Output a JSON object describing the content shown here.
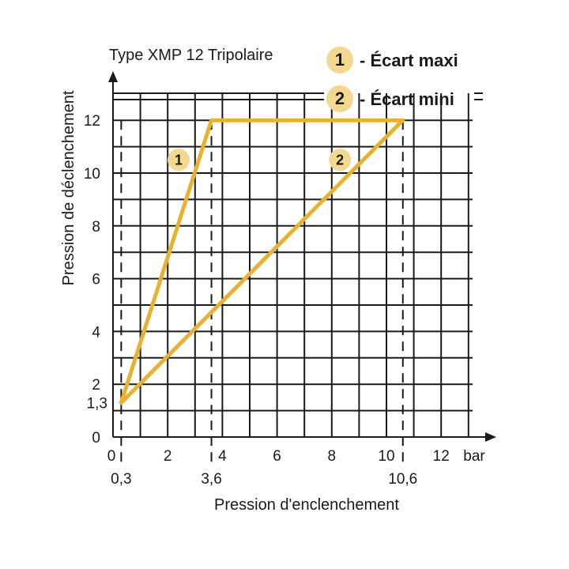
{
  "chart_data": {
    "type": "line",
    "title": "Type XMP 12 Tripolaire",
    "xlabel": "Pression d'enclenchement",
    "ylabel": "Pression de déclenchement",
    "x_unit": "bar",
    "xlim": [
      0,
      13.5
    ],
    "ylim": [
      0,
      13.3
    ],
    "x_ticks": [
      "0",
      "2",
      "4",
      "6",
      "8",
      "10",
      "12"
    ],
    "y_ticks": [
      "0",
      "2",
      "4",
      "6",
      "8",
      "10",
      "12"
    ],
    "x_ticks_extra": [
      "0,3",
      "3,6",
      "10,6"
    ],
    "y_ticks_extra": [
      "1,3"
    ],
    "grid": true,
    "line_color": "#e8b12e",
    "badge_color": "#f3d98f",
    "series": [
      {
        "name": "1 - Écart maxi",
        "badge": "1",
        "x": [
          0.3,
          3.6
        ],
        "y": [
          1.3,
          12
        ]
      },
      {
        "name": "2 - Écart mini",
        "badge": "2",
        "x": [
          0.3,
          10.6
        ],
        "y": [
          1.3,
          12
        ]
      }
    ],
    "top_line": {
      "x": [
        3.6,
        10.6
      ],
      "y": [
        12,
        12
      ]
    },
    "legend": [
      {
        "number": "1",
        "label": "- Écart maxi"
      },
      {
        "number": "2",
        "label": "- Écart mini"
      }
    ]
  }
}
